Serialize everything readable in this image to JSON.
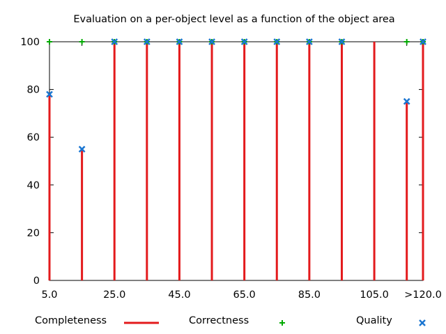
{
  "chart_data": {
    "type": "scatter",
    "title": "Evaluation on a per-object level as a function of the object area",
    "xlabel": "",
    "ylabel": "",
    "x": [
      5,
      15,
      25,
      35,
      45,
      55,
      65,
      75,
      85,
      95,
      105,
      115,
      120
    ],
    "x_tick_values": [
      5,
      25,
      45,
      65,
      85,
      105,
      120
    ],
    "x_tick_labels": [
      "5.0",
      "25.0",
      "45.0",
      "65.0",
      "85.0",
      "105.0",
      ">120.0"
    ],
    "y_ticks": [
      0,
      20,
      40,
      60,
      80,
      100
    ],
    "xlim": [
      5,
      120
    ],
    "ylim": [
      0,
      100
    ],
    "grid": false,
    "legend_position": "bottom",
    "series": [
      {
        "name": "Completeness",
        "style": "impulses",
        "color": "#e31a1c",
        "values": [
          78,
          55,
          100,
          100,
          100,
          100,
          100,
          100,
          100,
          100,
          100,
          75,
          100
        ]
      },
      {
        "name": "Correctness",
        "style": "plus-marker",
        "color": "#00aa00",
        "values": [
          100,
          100,
          100,
          100,
          100,
          100,
          100,
          100,
          100,
          100,
          null,
          100,
          100
        ]
      },
      {
        "name": "Quality",
        "style": "x-marker",
        "color": "#1a75d1",
        "values": [
          78,
          55,
          100,
          100,
          100,
          100,
          100,
          100,
          100,
          100,
          null,
          75,
          100
        ]
      }
    ]
  }
}
